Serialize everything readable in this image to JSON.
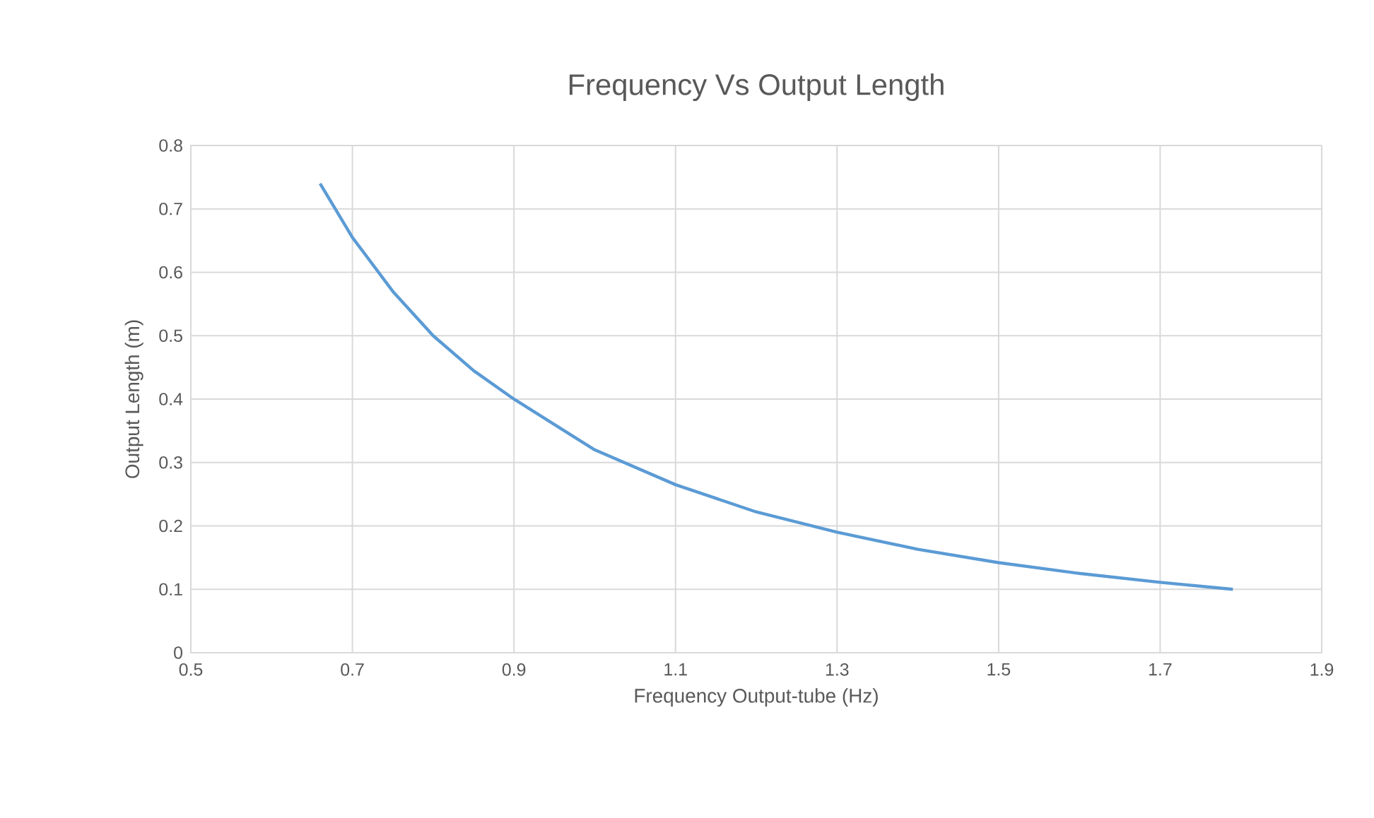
{
  "chart_data": {
    "type": "line",
    "title": "Frequency Vs Output Length",
    "xlabel": "Frequency Output-tube (Hz)",
    "ylabel": "Output Length (m)",
    "x": [
      0.66,
      0.7,
      0.75,
      0.8,
      0.85,
      0.9,
      1.0,
      1.1,
      1.2,
      1.3,
      1.4,
      1.5,
      1.6,
      1.7,
      1.79
    ],
    "series": [
      {
        "color": "#5b9bd5",
        "values": [
          0.74,
          0.655,
          0.57,
          0.5,
          0.445,
          0.4,
          0.32,
          0.265,
          0.222,
          0.19,
          0.163,
          0.142,
          0.125,
          0.111,
          0.1
        ]
      }
    ],
    "xlim": [
      0.5,
      1.9
    ],
    "xticks": [
      0.5,
      0.7,
      0.9,
      1.1,
      1.3,
      1.5,
      1.7,
      1.9
    ],
    "ylim": [
      0,
      0.8
    ],
    "yticks": [
      0,
      0.1,
      0.2,
      0.3,
      0.4,
      0.5,
      0.6,
      0.7,
      0.8
    ],
    "grid": true,
    "marker": "none",
    "line_style": "solid"
  }
}
